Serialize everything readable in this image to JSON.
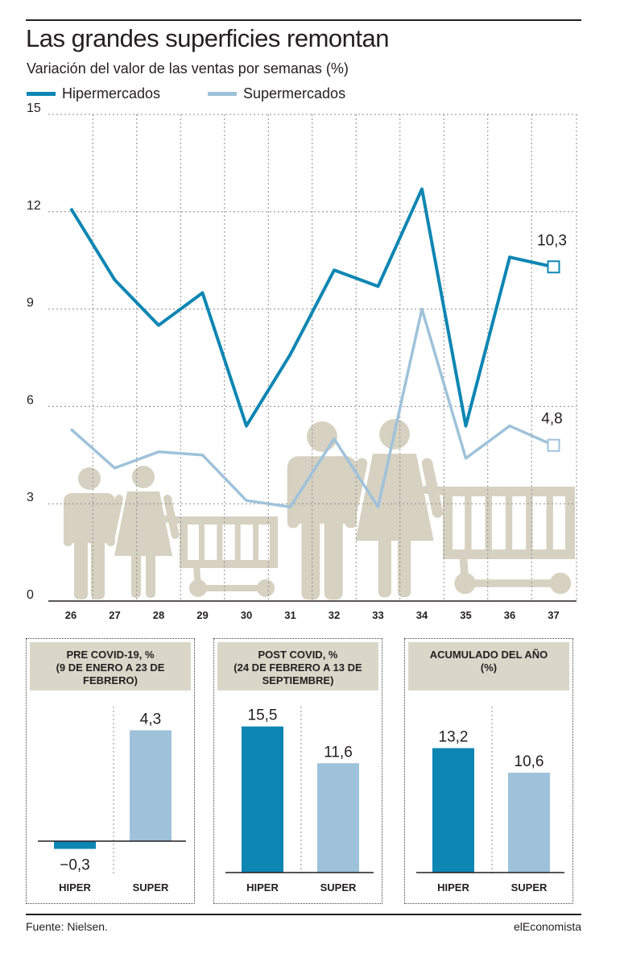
{
  "header": {
    "title": "Las grandes superficies remontan",
    "subtitle": "Variación del valor de las ventas por semanas (%)"
  },
  "colors": {
    "hiper": "#0e86b3",
    "super": "#9fc2db",
    "grid": "#8c8c8c",
    "header_bg": "#dad6c8",
    "figures": "#d6d1c1"
  },
  "legend": {
    "hiper_label": "Hipermercados",
    "super_label": "Supermercados"
  },
  "chart_data": [
    {
      "type": "line",
      "x": [
        26,
        27,
        28,
        29,
        30,
        31,
        32,
        33,
        34,
        35,
        36,
        37
      ],
      "y_ticks": [
        0,
        3,
        6,
        9,
        12,
        15
      ],
      "ylim": [
        0,
        15
      ],
      "grid": true,
      "series": [
        {
          "name": "Hipermercados",
          "values": [
            12.1,
            9.9,
            8.5,
            9.5,
            5.4,
            7.6,
            10.2,
            9.7,
            12.7,
            5.4,
            10.6,
            10.3
          ],
          "end_label": "10,3"
        },
        {
          "name": "Supermercados",
          "values": [
            5.3,
            4.1,
            4.6,
            4.5,
            3.1,
            2.9,
            5.0,
            2.9,
            9.0,
            4.4,
            5.4,
            4.8
          ],
          "end_label": "4,8"
        }
      ]
    },
    {
      "type": "bar",
      "title": "PRE COVID-19, % (9 DE ENERO A 23 DE FEBRERO)",
      "title_lines": [
        "PRE COVID-19, %",
        "(9 DE ENERO A 23 DE",
        "FEBRERO)"
      ],
      "categories": [
        "HIPER",
        "SUPER"
      ],
      "values": [
        -0.3,
        4.3
      ],
      "value_labels": [
        "−0,3",
        "4,3"
      ]
    },
    {
      "type": "bar",
      "title": "POST COVID, % (24 DE FEBRERO A 13 DE SEPTIEMBRE)",
      "title_lines": [
        "POST COVID, %",
        "(24 DE FEBRERO A 13 DE",
        "SEPTIEMBRE)"
      ],
      "categories": [
        "HIPER",
        "SUPER"
      ],
      "values": [
        15.5,
        11.6
      ],
      "value_labels": [
        "15,5",
        "11,6"
      ]
    },
    {
      "type": "bar",
      "title": "ACUMULADO DEL AÑO (%)",
      "title_lines": [
        "ACUMULADO DEL AÑO",
        "(%)"
      ],
      "categories": [
        "HIPER",
        "SUPER"
      ],
      "values": [
        13.2,
        10.6
      ],
      "value_labels": [
        "13,2",
        "10,6"
      ]
    }
  ],
  "footer": {
    "source": "Fuente: Nielsen.",
    "brand": "elEconomista"
  }
}
